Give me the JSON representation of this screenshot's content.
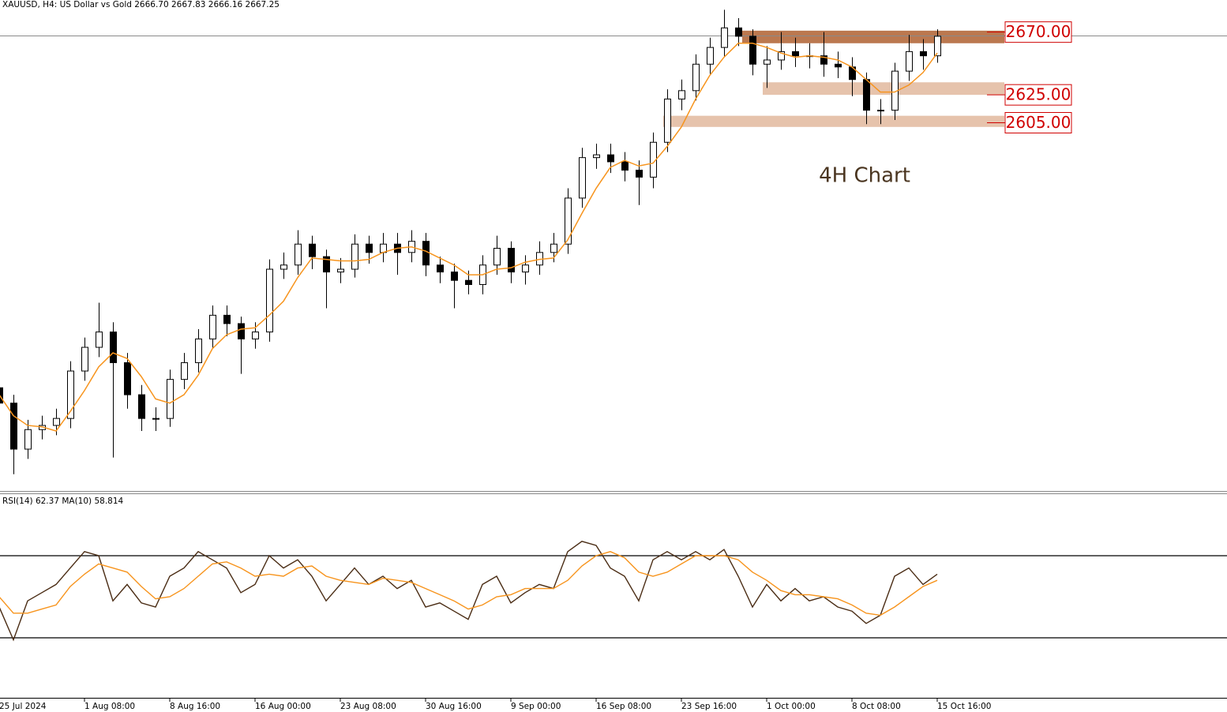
{
  "chart_data": [
    {
      "type": "candlestick",
      "title": "XAUUSD, H4:  US Dollar vs Gold  2666.70 2667.83 2666.16 2667.25",
      "categories": [
        "25 Jul 2024",
        null,
        null,
        null,
        null,
        null,
        "1 Aug 08:00",
        null,
        null,
        null,
        null,
        null,
        "8 Aug 16:00",
        null,
        null,
        null,
        null,
        null,
        "16 Aug 00:00",
        null,
        null,
        null,
        null,
        null,
        "23 Aug 08:00",
        null,
        null,
        null,
        null,
        null,
        "30 Aug 16:00",
        null,
        null,
        null,
        null,
        null,
        "9 Sep 00:00",
        null,
        null,
        null,
        null,
        null,
        "16 Sep 08:00",
        null,
        null,
        null,
        null,
        null,
        "23 Sep 16:00",
        null,
        null,
        null,
        null,
        null,
        "1 Oct 00:00",
        null,
        null,
        null,
        null,
        null,
        "8 Oct 08:00",
        null,
        null,
        null,
        null,
        null,
        "15 Oct 16:00"
      ],
      "open": [
        2415,
        2404,
        2371,
        2385,
        2388,
        2393,
        2427,
        2444,
        2455,
        2433,
        2410,
        2393,
        2393,
        2421,
        2433,
        2450,
        2467,
        2461,
        2450,
        2455,
        2500,
        2503,
        2518,
        2509,
        2498,
        2500,
        2518,
        2512,
        2518,
        2512,
        2520,
        2503,
        2498,
        2492,
        2489,
        2503,
        2515,
        2498,
        2503,
        2512,
        2518,
        2551,
        2580,
        2582,
        2577,
        2571,
        2566,
        2591,
        2622,
        2628,
        2647,
        2659,
        2673,
        2667,
        2647,
        2650,
        2656,
        2653,
        2653,
        2647,
        2645,
        2636,
        2614,
        2614,
        2642,
        2656,
        2653
      ],
      "high": [
        2422,
        2410,
        2392,
        2395,
        2400,
        2434,
        2451,
        2476,
        2462,
        2440,
        2417,
        2401,
        2428,
        2440,
        2457,
        2474,
        2474,
        2466,
        2462,
        2507,
        2512,
        2528,
        2524,
        2514,
        2508,
        2525,
        2524,
        2526,
        2526,
        2528,
        2526,
        2509,
        2504,
        2499,
        2510,
        2524,
        2520,
        2510,
        2520,
        2526,
        2558,
        2587,
        2590,
        2590,
        2584,
        2578,
        2598,
        2629,
        2636,
        2654,
        2666,
        2686,
        2680,
        2672,
        2660,
        2670,
        2666,
        2662,
        2670,
        2656,
        2652,
        2641,
        2622,
        2648,
        2668,
        2665,
        2672
      ],
      "low": [
        2396,
        2353,
        2364,
        2378,
        2381,
        2386,
        2420,
        2437,
        2365,
        2400,
        2384,
        2384,
        2387,
        2414,
        2426,
        2443,
        2452,
        2425,
        2443,
        2448,
        2493,
        2496,
        2500,
        2472,
        2490,
        2494,
        2504,
        2505,
        2496,
        2505,
        2495,
        2490,
        2472,
        2482,
        2482,
        2496,
        2490,
        2489,
        2496,
        2505,
        2511,
        2544,
        2572,
        2569,
        2563,
        2546,
        2558,
        2584,
        2614,
        2621,
        2640,
        2652,
        2660,
        2639,
        2630,
        2643,
        2645,
        2644,
        2638,
        2637,
        2624,
        2604,
        2604,
        2607,
        2635,
        2643,
        2648
      ],
      "close": [
        2404,
        2371,
        2385,
        2388,
        2393,
        2427,
        2444,
        2455,
        2433,
        2410,
        2393,
        2393,
        2421,
        2433,
        2450,
        2467,
        2461,
        2450,
        2455,
        2500,
        2503,
        2518,
        2509,
        2498,
        2500,
        2518,
        2512,
        2518,
        2512,
        2520,
        2503,
        2498,
        2492,
        2489,
        2503,
        2515,
        2498,
        2503,
        2512,
        2518,
        2551,
        2580,
        2582,
        2577,
        2571,
        2566,
        2591,
        2622,
        2628,
        2647,
        2659,
        2673,
        2667,
        2647,
        2650,
        2656,
        2653,
        2653,
        2647,
        2645,
        2636,
        2614,
        2614,
        2642,
        2656,
        2653,
        2667
      ],
      "color": "#000000",
      "ma": {
        "color": "#f7941d",
        "values": [
          2410,
          2395,
          2388,
          2387,
          2384,
          2398,
          2413,
          2430,
          2440,
          2436,
          2423,
          2407,
          2404,
          2410,
          2424,
          2443,
          2453,
          2457,
          2458,
          2467,
          2477,
          2494,
          2508,
          2507,
          2506,
          2506,
          2507,
          2512,
          2515,
          2516,
          2513,
          2508,
          2503,
          2496,
          2496,
          2500,
          2501,
          2505,
          2507,
          2508,
          2521,
          2540,
          2558,
          2573,
          2578,
          2574,
          2576,
          2588,
          2602,
          2622,
          2639,
          2652,
          2662,
          2662,
          2659,
          2655,
          2652,
          2653,
          2652,
          2650,
          2645,
          2636,
          2627,
          2627,
          2632,
          2641,
          2655
        ]
      },
      "zones": [
        {
          "label": "2670.00",
          "value": 2670,
          "low": 2662,
          "high": 2671,
          "color": "#b4693c"
        },
        {
          "label": "2625.00",
          "value": 2625,
          "low": 2625,
          "high": 2634,
          "color": "#e3bda3"
        },
        {
          "label": "2605.00",
          "value": 2605,
          "low": 2602,
          "high": 2610,
          "color": "#e3bda3"
        }
      ],
      "annotation": "4H Chart",
      "price_line": 2667.25,
      "ylim": [
        2341,
        2693
      ]
    },
    {
      "type": "line",
      "title": "RSI(14) 62.37 MA(10) 58.814",
      "series": [
        {
          "color": "#4a2c14",
          "values": [
            45,
            29,
            48,
            52,
            56,
            64,
            72,
            70,
            48,
            56,
            47,
            45,
            60,
            64,
            72,
            68,
            64,
            52,
            56,
            70,
            64,
            68,
            60,
            48,
            56,
            64,
            56,
            60,
            54,
            58,
            45,
            47,
            43,
            39,
            56,
            60,
            47,
            52,
            56,
            54,
            72,
            77,
            75,
            64,
            60,
            48,
            68,
            72,
            68,
            72,
            68,
            73,
            60,
            45,
            56,
            48,
            54,
            48,
            50,
            45,
            43,
            37,
            41,
            60,
            64,
            56,
            61
          ]
        },
        {
          "color": "#f7941d",
          "values": [
            50,
            42,
            42,
            44,
            46,
            55,
            61,
            66,
            64,
            62,
            55,
            49,
            50,
            54,
            60,
            66,
            67,
            64,
            60,
            61,
            60,
            64,
            65,
            60,
            58,
            57,
            56,
            59,
            58,
            57,
            54,
            51,
            48,
            44,
            46,
            50,
            51,
            54,
            54,
            54,
            58,
            65,
            70,
            72,
            69,
            62,
            60,
            62,
            66,
            70,
            70,
            70,
            68,
            62,
            58,
            53,
            51,
            51,
            50,
            49,
            46,
            42,
            41,
            45,
            50,
            55,
            58
          ]
        }
      ],
      "levels": [
        30,
        70
      ],
      "ylim": [
        0,
        100
      ]
    }
  ]
}
